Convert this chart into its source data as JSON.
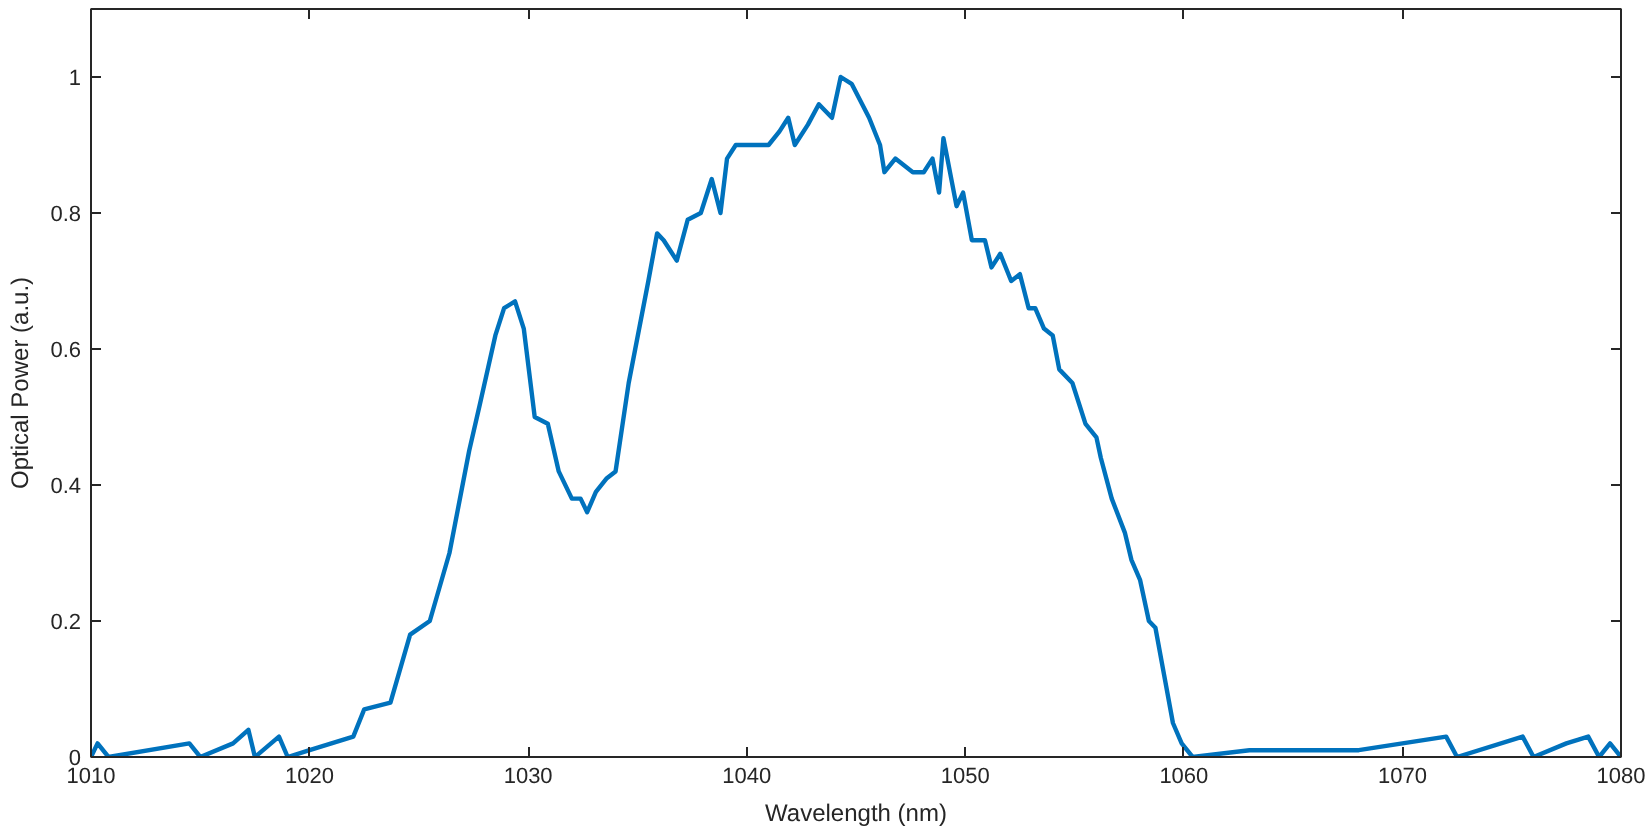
{
  "chart_data": {
    "type": "line",
    "xlabel": "Wavelength (nm)",
    "ylabel": "Optical Power (a.u.)",
    "xlim": [
      1010,
      1080
    ],
    "ylim": [
      0,
      1.1
    ],
    "xticks": [
      1010,
      1020,
      1030,
      1040,
      1050,
      1060,
      1070,
      1080
    ],
    "yticks": [
      0,
      0.2,
      0.4,
      0.6,
      0.8,
      1
    ],
    "grid": false,
    "marker": "none",
    "line_style": "solid",
    "series": [
      {
        "color": "#0072bd",
        "x": [
          1010,
          1010.3,
          1010.8,
          1014.5,
          1015,
          1016.5,
          1017.2,
          1017.5,
          1018.6,
          1019,
          1020,
          1021,
          1022,
          1022.5,
          1023.7,
          1024.6,
          1025.5,
          1026.4,
          1027.3,
          1027.8,
          1028.5,
          1028.9,
          1029.4,
          1029.8,
          1030.3,
          1030.9,
          1031.4,
          1032,
          1032.4,
          1032.7,
          1033.1,
          1033.6,
          1034,
          1034.6,
          1034.9,
          1035.5,
          1035.9,
          1036.2,
          1036.8,
          1037.3,
          1037.9,
          1038.4,
          1038.8,
          1039.1,
          1039.5,
          1040.2,
          1041,
          1041.5,
          1041.9,
          1042.2,
          1042.8,
          1043.3,
          1043.9,
          1044.3,
          1044.8,
          1045.6,
          1046.1,
          1046.3,
          1046.8,
          1047.6,
          1048.1,
          1048.5,
          1048.8,
          1049,
          1049.6,
          1049.9,
          1050.3,
          1050.9,
          1051.2,
          1051.6,
          1052.1,
          1052.5,
          1052.9,
          1053.2,
          1053.6,
          1054,
          1054.3,
          1054.9,
          1055.5,
          1056,
          1056.2,
          1056.7,
          1057.3,
          1057.6,
          1058,
          1058.4,
          1058.7,
          1059.1,
          1059.5,
          1059.9,
          1060.4,
          1063,
          1065,
          1068,
          1072,
          1072.5,
          1075.5,
          1076,
          1077.5,
          1078.5,
          1079,
          1079.5,
          1080
        ],
        "values": [
          0,
          0.02,
          0,
          0.02,
          0,
          0.02,
          0.04,
          0,
          0.03,
          0,
          0.01,
          0.02,
          0.03,
          0.07,
          0.08,
          0.18,
          0.2,
          0.3,
          0.45,
          0.52,
          0.62,
          0.66,
          0.67,
          0.63,
          0.5,
          0.49,
          0.42,
          0.38,
          0.38,
          0.36,
          0.39,
          0.41,
          0.42,
          0.55,
          0.6,
          0.7,
          0.77,
          0.76,
          0.73,
          0.79,
          0.8,
          0.85,
          0.8,
          0.88,
          0.9,
          0.9,
          0.9,
          0.92,
          0.94,
          0.9,
          0.93,
          0.96,
          0.94,
          1.0,
          0.99,
          0.94,
          0.9,
          0.86,
          0.88,
          0.86,
          0.86,
          0.88,
          0.83,
          0.91,
          0.81,
          0.83,
          0.76,
          0.76,
          0.72,
          0.74,
          0.7,
          0.71,
          0.66,
          0.66,
          0.63,
          0.62,
          0.57,
          0.55,
          0.49,
          0.47,
          0.44,
          0.38,
          0.33,
          0.29,
          0.26,
          0.2,
          0.19,
          0.12,
          0.05,
          0.02,
          0,
          0.01,
          0.01,
          0.01,
          0.03,
          0,
          0.03,
          0,
          0.02,
          0.03,
          0,
          0.02,
          0
        ]
      }
    ]
  }
}
